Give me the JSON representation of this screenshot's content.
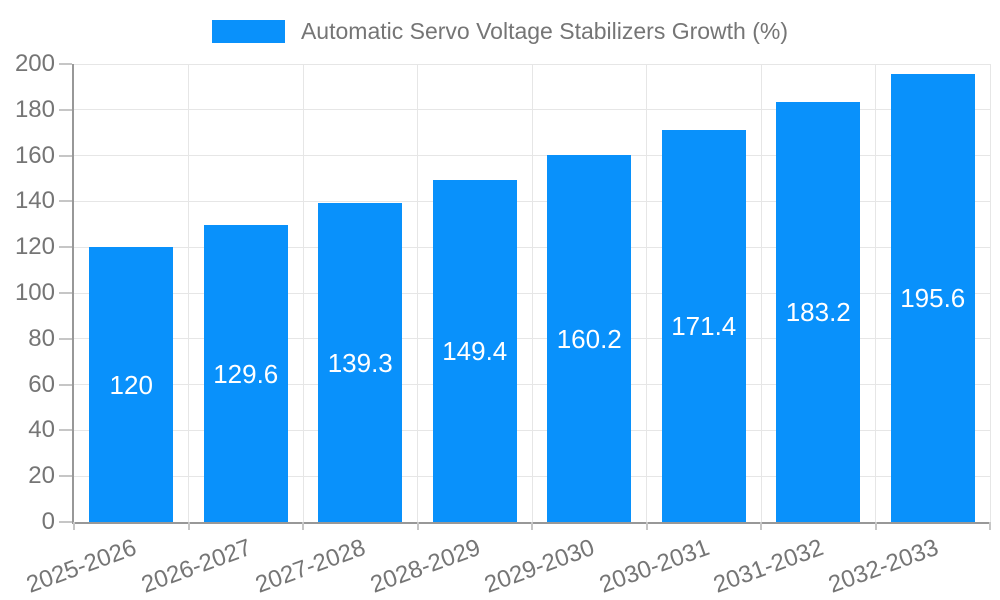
{
  "chart_data": {
    "type": "bar",
    "title": "Automatic Servo Voltage Stabilizers Growth (%)",
    "series_name": "Automatic Servo Voltage Stabilizers Growth (%)",
    "categories": [
      "2025-2026",
      "2026-2027",
      "2027-2028",
      "2028-2029",
      "2029-2030",
      "2030-2031",
      "2031-2032",
      "2032-2033"
    ],
    "values": [
      120,
      129.6,
      139.3,
      149.4,
      160.2,
      171.4,
      183.2,
      195.6
    ],
    "value_labels": [
      "120",
      "129.6",
      "139.3",
      "149.4",
      "160.2",
      "171.4",
      "183.2",
      "195.6"
    ],
    "xlabel": "",
    "ylabel": "",
    "ylim": [
      0,
      200
    ],
    "yticks": [
      0,
      20,
      40,
      60,
      80,
      100,
      120,
      140,
      160,
      180,
      200
    ],
    "grid": true,
    "legend_position": "top",
    "x_label_rotation_deg": -20,
    "colors": {
      "bar": "#0991fb",
      "bar_label": "#ffffff",
      "axis_text": "#757575",
      "grid": "#e6e6e6",
      "axis_line": "#989898",
      "tick": "#c6c6c6",
      "background": "#ffffff"
    }
  }
}
